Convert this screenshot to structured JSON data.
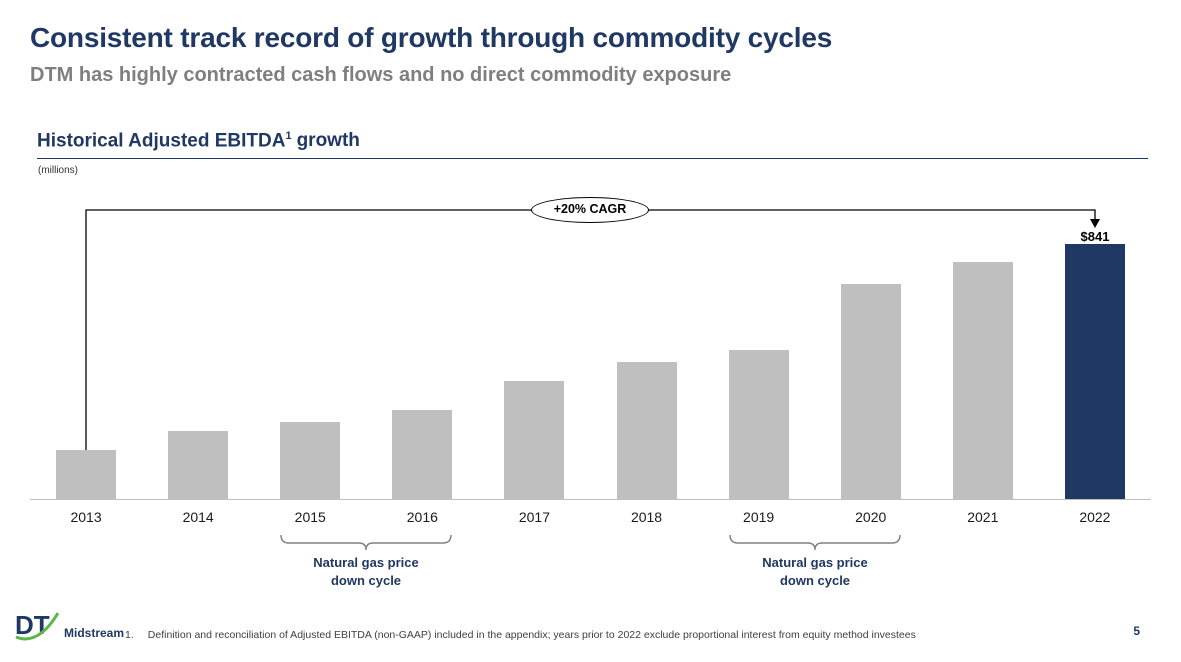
{
  "slide": {
    "title": "Consistent track record of growth through commodity cycles",
    "subtitle": "DTM has highly contracted cash flows and no direct commodity exposure",
    "section_title": "Historical Adjusted EBITDA",
    "section_title_superscript": "1",
    "section_title_suffix": "growth",
    "units_label": "(millions)",
    "page_number": "5"
  },
  "chart_data": {
    "type": "bar",
    "title": "Historical Adjusted EBITDA growth",
    "units": "millions ($)",
    "categories": [
      "2013",
      "2014",
      "2015",
      "2016",
      "2017",
      "2018",
      "2019",
      "2020",
      "2021",
      "2022"
    ],
    "values": [
      160,
      225,
      255,
      295,
      390,
      450,
      490,
      710,
      780,
      841
    ],
    "ylim": [
      0,
      900
    ],
    "gridlines": false,
    "bar_color": "#BFBFBF",
    "highlight_category": "2022",
    "highlight_color": "#1F3864",
    "highlight_value_label": "$841",
    "cagr_annotation": "+20% CAGR",
    "down_cycle_annotations": [
      {
        "label": "Natural gas price down cycle",
        "line1": "Natural gas price",
        "line2": "down cycle",
        "from": "2015",
        "to": "2016"
      },
      {
        "label": "Natural gas price down cycle",
        "line1": "Natural gas price",
        "line2": "down cycle",
        "from": "2019",
        "to": "2020"
      }
    ]
  },
  "footer": {
    "logo_dt": "DT",
    "logo_midstream": "Midstream",
    "footnote_number": "1.",
    "footnote_text": "Definition and reconciliation of Adjusted EBITDA (non-GAAP) included in the appendix; years prior to 2022 exclude proportional interest from equity method investees"
  },
  "colors": {
    "navy": "#1F3864",
    "subtitle_gray": "#7F7F7F",
    "bar_gray": "#BFBFBF",
    "logo_green": "#5BB847"
  }
}
